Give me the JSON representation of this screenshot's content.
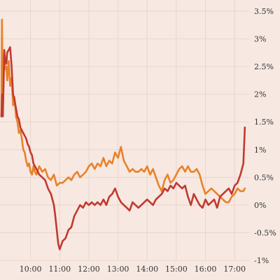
{
  "chart_data": {
    "type": "line",
    "title": "",
    "xlabel": "",
    "ylabel": "",
    "x_tick_labels": [
      "10:00",
      "11:00",
      "12:00",
      "13:00",
      "14:00",
      "15:00",
      "16:00",
      "17:00"
    ],
    "y_tick_labels": [
      "3.5%",
      "3%",
      "2.5%",
      "2%",
      "1.5%",
      "1%",
      "0.5%",
      "0%",
      "-0.5%",
      "-1%"
    ],
    "y_ticks": [
      3.5,
      3,
      2.5,
      2,
      1.5,
      1,
      0.5,
      0,
      -0.5,
      -1
    ],
    "x_tick_values": [
      10,
      11,
      12,
      13,
      14,
      15,
      16,
      17
    ],
    "xlim": [
      9.0,
      17.5
    ],
    "ylim": [
      -1,
      3.5
    ],
    "grid": true,
    "legend": "none",
    "series": [
      {
        "color": "#e8822a",
        "x": [
          9.0,
          9.02,
          9.05,
          9.08,
          9.1,
          9.13,
          9.17,
          9.2,
          9.25,
          9.3,
          9.35,
          9.4,
          9.45,
          9.5,
          9.55,
          9.6,
          9.65,
          9.7,
          9.75,
          9.8,
          9.85,
          9.9,
          9.95,
          10.0,
          10.05,
          10.1,
          10.15,
          10.2,
          10.3,
          10.4,
          10.5,
          10.6,
          10.7,
          10.8,
          10.9,
          11.0,
          11.1,
          11.2,
          11.3,
          11.4,
          11.5,
          11.6,
          11.7,
          11.8,
          11.9,
          12.0,
          12.1,
          12.2,
          12.3,
          12.4,
          12.5,
          12.6,
          12.7,
          12.8,
          12.9,
          13.0,
          13.1,
          13.2,
          13.3,
          13.4,
          13.5,
          13.6,
          13.7,
          13.8,
          13.9,
          14.0,
          14.1,
          14.2,
          14.3,
          14.4,
          14.5,
          14.6,
          14.7,
          14.8,
          14.9,
          15.0,
          15.1,
          15.2,
          15.3,
          15.4,
          15.5,
          15.6,
          15.7,
          15.8,
          15.9,
          16.0,
          16.1,
          16.2,
          16.3,
          16.4,
          16.5,
          16.6,
          16.7,
          16.8,
          16.9,
          17.0,
          17.1,
          17.2,
          17.3,
          17.35
        ],
        "values": [
          1.6,
          3.35,
          1.9,
          2.4,
          2.7,
          2.45,
          2.5,
          2.25,
          2.6,
          2.15,
          2.3,
          1.8,
          1.95,
          1.6,
          1.5,
          1.3,
          1.35,
          1.2,
          1.0,
          0.95,
          0.8,
          0.7,
          0.75,
          0.6,
          0.55,
          0.7,
          0.6,
          0.55,
          0.7,
          0.6,
          0.65,
          0.5,
          0.45,
          0.55,
          0.35,
          0.4,
          0.4,
          0.45,
          0.5,
          0.45,
          0.55,
          0.6,
          0.5,
          0.55,
          0.6,
          0.7,
          0.75,
          0.65,
          0.75,
          0.7,
          0.85,
          0.7,
          0.8,
          0.75,
          0.95,
          0.85,
          1.05,
          0.8,
          0.7,
          0.6,
          0.65,
          0.6,
          0.6,
          0.65,
          0.6,
          0.7,
          0.55,
          0.65,
          0.5,
          0.35,
          0.25,
          0.45,
          0.55,
          0.4,
          0.45,
          0.55,
          0.65,
          0.7,
          0.6,
          0.7,
          0.6,
          0.6,
          0.65,
          0.55,
          0.35,
          0.2,
          0.25,
          0.3,
          0.25,
          0.2,
          0.15,
          0.1,
          0.05,
          0.05,
          0.15,
          0.2,
          0.3,
          0.25,
          0.25,
          0.3
        ]
      },
      {
        "color": "#c13a2e",
        "x": [
          9.0,
          9.03,
          9.05,
          9.08,
          9.1,
          9.13,
          9.17,
          9.2,
          9.25,
          9.3,
          9.35,
          9.4,
          9.45,
          9.5,
          9.55,
          9.6,
          9.65,
          9.7,
          9.75,
          9.8,
          9.85,
          9.9,
          9.95,
          10.0,
          10.05,
          10.1,
          10.15,
          10.2,
          10.3,
          10.4,
          10.5,
          10.6,
          10.7,
          10.75,
          10.8,
          10.85,
          10.9,
          10.95,
          11.0,
          11.1,
          11.2,
          11.3,
          11.4,
          11.5,
          11.6,
          11.7,
          11.8,
          11.9,
          12.0,
          12.1,
          12.2,
          12.3,
          12.4,
          12.5,
          12.6,
          12.7,
          12.8,
          12.9,
          13.0,
          13.1,
          13.2,
          13.3,
          13.4,
          13.5,
          13.6,
          13.7,
          13.8,
          13.9,
          14.0,
          14.1,
          14.2,
          14.3,
          14.4,
          14.5,
          14.6,
          14.7,
          14.8,
          14.9,
          15.0,
          15.1,
          15.2,
          15.3,
          15.4,
          15.5,
          15.6,
          15.7,
          15.8,
          15.9,
          16.0,
          16.1,
          16.2,
          16.3,
          16.4,
          16.5,
          16.6,
          16.7,
          16.8,
          16.9,
          17.0,
          17.1,
          17.2,
          17.3,
          17.35
        ],
        "values": [
          1.6,
          2.0,
          1.6,
          2.3,
          2.8,
          2.6,
          2.55,
          2.75,
          2.8,
          2.85,
          2.5,
          2.0,
          1.9,
          1.75,
          1.6,
          1.55,
          1.4,
          1.35,
          1.3,
          1.25,
          1.2,
          1.1,
          1.05,
          0.95,
          0.9,
          0.75,
          0.7,
          0.65,
          0.55,
          0.5,
          0.45,
          0.3,
          0.2,
          0.1,
          0.0,
          -0.2,
          -0.45,
          -0.7,
          -0.8,
          -0.65,
          -0.6,
          -0.45,
          -0.4,
          -0.2,
          -0.1,
          0.0,
          -0.05,
          0.05,
          0.0,
          0.05,
          0.0,
          0.05,
          0.0,
          0.1,
          0.0,
          0.15,
          0.2,
          0.3,
          0.15,
          0.05,
          0.0,
          -0.05,
          -0.1,
          0.05,
          0.0,
          -0.05,
          0.0,
          0.05,
          0.1,
          0.05,
          0.0,
          0.1,
          0.15,
          0.2,
          0.3,
          0.25,
          0.35,
          0.3,
          0.4,
          0.35,
          0.3,
          0.35,
          0.15,
          0.0,
          0.2,
          0.1,
          0.0,
          -0.05,
          0.1,
          0.0,
          0.05,
          0.1,
          -0.05,
          0.15,
          0.2,
          0.25,
          0.3,
          0.2,
          0.35,
          0.4,
          0.55,
          0.75,
          1.4
        ]
      }
    ]
  }
}
